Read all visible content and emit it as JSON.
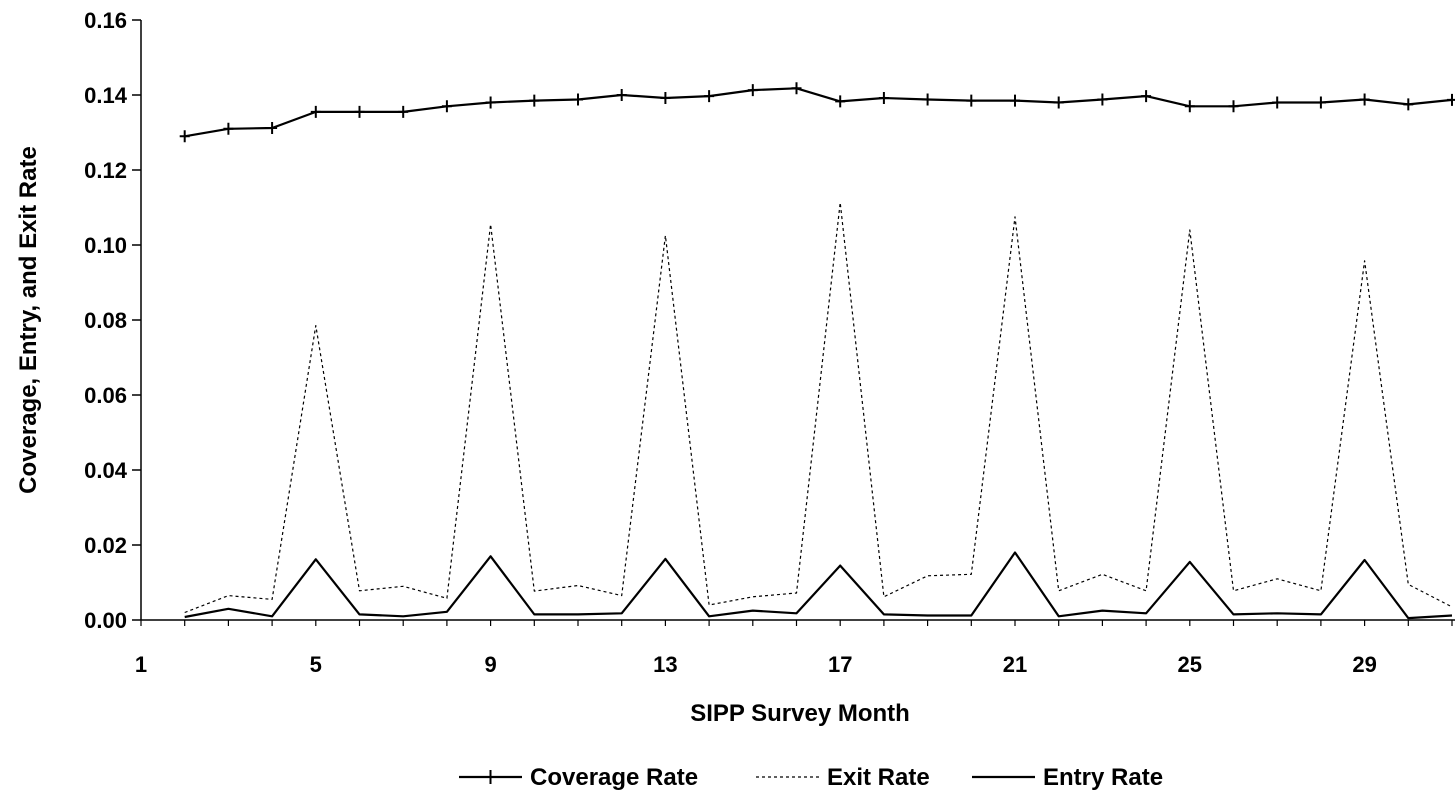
{
  "chart_data": {
    "type": "line",
    "title": "",
    "xlabel": "SIPP Survey Month",
    "ylabel": "Coverage, Entry, and Exit Rate",
    "xlim": [
      1,
      31
    ],
    "ylim": [
      0,
      0.16
    ],
    "x_ticks": [
      1,
      5,
      9,
      13,
      17,
      21,
      25,
      29
    ],
    "x_tick_labels": [
      "1",
      "5",
      "9",
      "13",
      "17",
      "21",
      "25",
      "29"
    ],
    "y_ticks": [
      0,
      0.02,
      0.04,
      0.06,
      0.08,
      0.1,
      0.12,
      0.14,
      0.16
    ],
    "y_tick_labels": [
      "0.00",
      "0.02",
      "0.04",
      "0.06",
      "0.08",
      "0.10",
      "0.12",
      "0.14",
      "0.16"
    ],
    "grid": false,
    "legend_position": "bottom-center",
    "x": [
      2,
      3,
      4,
      5,
      6,
      7,
      8,
      9,
      10,
      11,
      12,
      13,
      14,
      15,
      16,
      17,
      18,
      19,
      20,
      21,
      22,
      23,
      24,
      25,
      26,
      27,
      28,
      29,
      30,
      31
    ],
    "series": [
      {
        "name": "Coverage Rate",
        "style": "solid-with-plus-markers",
        "color": "#000000",
        "values": [
          0.129,
          0.131,
          0.1312,
          0.1355,
          0.1355,
          0.1355,
          0.137,
          0.138,
          0.1385,
          0.1388,
          0.14,
          0.1392,
          0.1397,
          0.1413,
          0.1418,
          0.1383,
          0.1392,
          0.1388,
          0.1385,
          0.1385,
          0.138,
          0.1388,
          0.1397,
          0.137,
          0.137,
          0.138,
          0.138,
          0.1388,
          0.1375,
          0.1387
        ]
      },
      {
        "name": "Exit Rate",
        "style": "dotted",
        "color": "#000000",
        "values": [
          0.002,
          0.0065,
          0.0055,
          0.0785,
          0.0078,
          0.009,
          0.0058,
          0.1055,
          0.0077,
          0.0092,
          0.0065,
          0.1025,
          0.004,
          0.0062,
          0.0072,
          0.1113,
          0.0062,
          0.0118,
          0.0122,
          0.1075,
          0.0078,
          0.0122,
          0.0078,
          0.104,
          0.0078,
          0.011,
          0.0078,
          0.0958,
          0.0095,
          0.0035
        ]
      },
      {
        "name": "Entry Rate",
        "style": "solid",
        "color": "#000000",
        "values": [
          0.0008,
          0.003,
          0.001,
          0.0162,
          0.0015,
          0.001,
          0.0022,
          0.017,
          0.0015,
          0.0015,
          0.0018,
          0.0163,
          0.001,
          0.0025,
          0.0018,
          0.0145,
          0.0015,
          0.0012,
          0.0012,
          0.018,
          0.001,
          0.0025,
          0.0018,
          0.0155,
          0.0015,
          0.0018,
          0.0015,
          0.016,
          0.0005,
          0.0012
        ]
      }
    ]
  }
}
